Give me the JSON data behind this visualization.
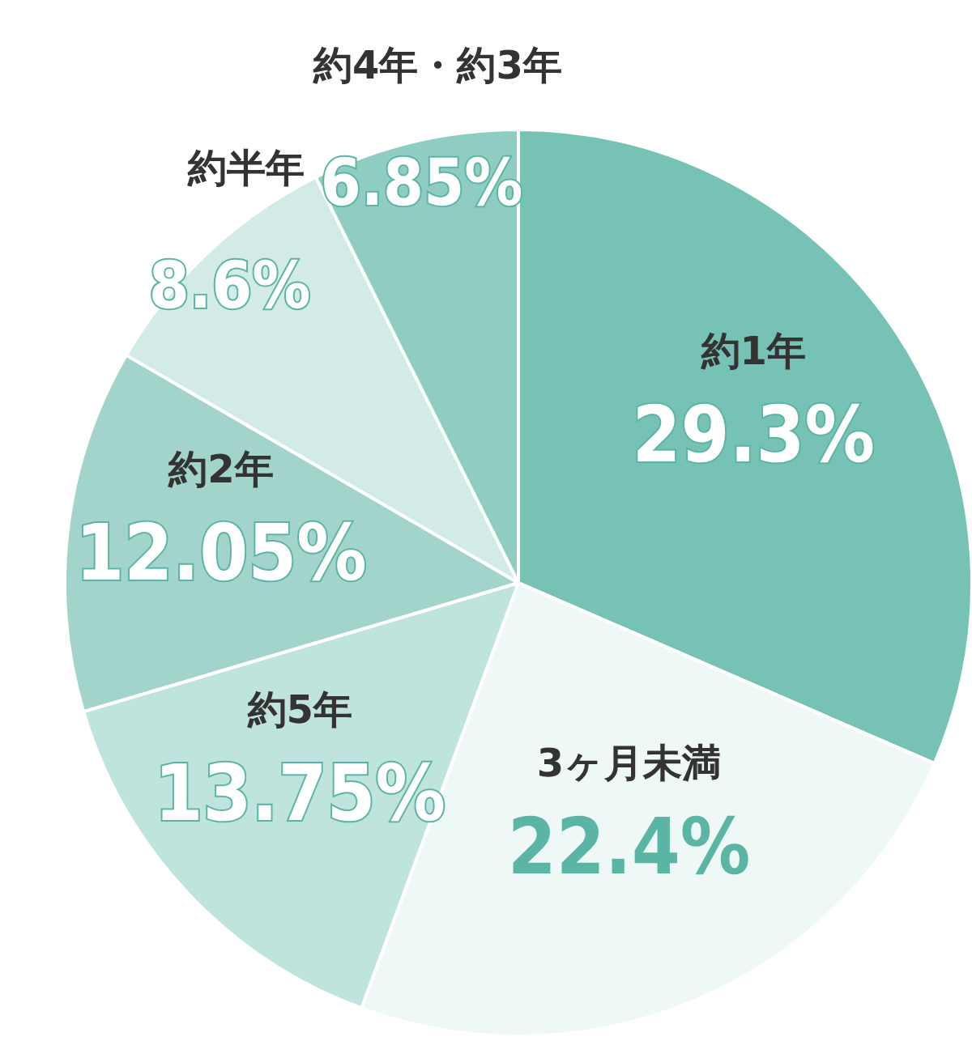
{
  "chart_data": {
    "type": "pie",
    "categories": [
      "約1年",
      "3ヶ月未満",
      "約5年",
      "約2年",
      "約半年",
      "約4年・約3年"
    ],
    "values": [
      29.3,
      22.4,
      13.75,
      12.05,
      8.6,
      6.85
    ],
    "colors": [
      "#76c2b5",
      "#eef8f6",
      "#bfe3dd",
      "#a2d4cc",
      "#d3ebe7",
      "#8fcdc2"
    ],
    "value_labels": [
      "29.3%",
      "22.4%",
      "13.75%",
      "12.05%",
      "8.6%",
      "6.85%"
    ]
  }
}
